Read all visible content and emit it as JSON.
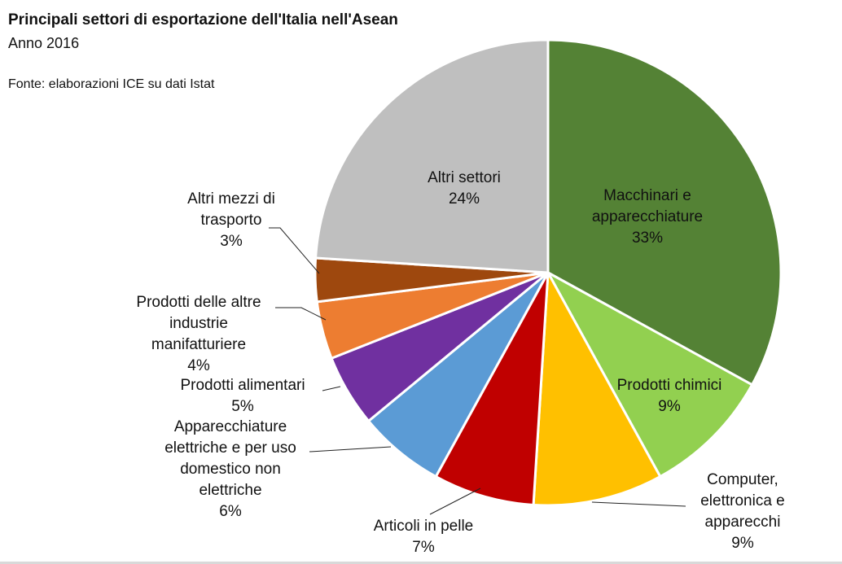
{
  "header": {
    "title": "Principali settori di esportazione dell'Italia nell'Asean",
    "subtitle": "Anno 2016",
    "source": "Fonte: elaborazioni ICE su dati Istat"
  },
  "chart_data": {
    "type": "pie",
    "title": "Principali settori di esportazione dell'Italia nell'Asean",
    "subtitle": "Anno 2016",
    "start_angle_deg": 0,
    "direction": "clockwise",
    "slices": [
      {
        "label": "Macchinari e apparecchiature",
        "value": 33,
        "value_label": "33%",
        "color": "#548235"
      },
      {
        "label": "Prodotti chimici",
        "value": 9,
        "value_label": "9%",
        "color": "#92d050"
      },
      {
        "label": "Computer, elettronica e apparecchi",
        "value": 9,
        "value_label": "9%",
        "color": "#ffc000"
      },
      {
        "label": "Articoli in pelle",
        "value": 7,
        "value_label": "7%",
        "color": "#c00000"
      },
      {
        "label": "Apparecchiature elettriche e per uso domestico non elettriche",
        "value": 6,
        "value_label": "6%",
        "color": "#5b9bd5"
      },
      {
        "label": "Prodotti alimentari",
        "value": 5,
        "value_label": "5%",
        "color": "#7030a0"
      },
      {
        "label": "Prodotti delle altre industrie manifatturiere",
        "value": 4,
        "value_label": "4%",
        "color": "#ed7d31"
      },
      {
        "label": "Altri mezzi di trasporto",
        "value": 3,
        "value_label": "3%",
        "color": "#9e480e"
      },
      {
        "label": "Altri settori",
        "value": 24,
        "value_label": "24%",
        "color": "#bfbfbf"
      }
    ]
  }
}
